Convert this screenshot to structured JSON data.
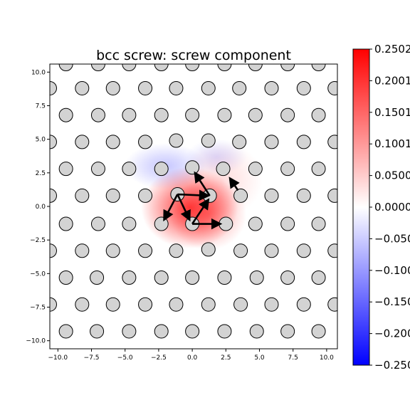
{
  "chart_data": {
    "type": "scatter",
    "title": "bcc screw: screw component",
    "xlabel": "",
    "ylabel": "",
    "xlim": [
      -10.6,
      10.8
    ],
    "ylim": [
      -10.6,
      10.6
    ],
    "x_ticks": [
      -10.0,
      -7.5,
      -5.0,
      -2.5,
      0.0,
      2.5,
      5.0,
      7.5,
      10.0
    ],
    "y_ticks": [
      -10.0,
      -7.5,
      -5.0,
      -2.5,
      0.0,
      2.5,
      5.0,
      7.5,
      10.0
    ],
    "x_tick_labels": [
      "−10.0",
      "−7.5",
      "−5.0",
      "−2.5",
      "0.0",
      "2.5",
      "5.0",
      "7.5",
      "10.0"
    ],
    "y_tick_labels": [
      "−10.0",
      "−7.5",
      "−5.0",
      "−2.5",
      "0.0",
      "2.5",
      "5.0",
      "7.5",
      "10.0"
    ],
    "grid": false,
    "atoms": [
      {
        "x": -9.4,
        "y": 10.6
      },
      {
        "x": -7.0,
        "y": 10.6
      },
      {
        "x": -4.7,
        "y": 10.6
      },
      {
        "x": -2.3,
        "y": 10.6
      },
      {
        "x": 0.0,
        "y": 10.6
      },
      {
        "x": 2.4,
        "y": 10.6
      },
      {
        "x": 4.7,
        "y": 10.6
      },
      {
        "x": 7.1,
        "y": 10.6
      },
      {
        "x": 9.4,
        "y": 10.6
      },
      {
        "x": -10.6,
        "y": 8.8
      },
      {
        "x": -8.2,
        "y": 8.8
      },
      {
        "x": -5.9,
        "y": 8.8
      },
      {
        "x": -3.5,
        "y": 8.8
      },
      {
        "x": -1.2,
        "y": 8.8
      },
      {
        "x": 1.2,
        "y": 8.8
      },
      {
        "x": 3.5,
        "y": 8.8
      },
      {
        "x": 5.9,
        "y": 8.8
      },
      {
        "x": 8.3,
        "y": 8.8
      },
      {
        "x": 10.6,
        "y": 8.8
      },
      {
        "x": -9.4,
        "y": 6.8
      },
      {
        "x": -7.0,
        "y": 6.8
      },
      {
        "x": -4.7,
        "y": 6.8
      },
      {
        "x": -2.3,
        "y": 6.8
      },
      {
        "x": 0.0,
        "y": 6.8
      },
      {
        "x": 2.4,
        "y": 6.8
      },
      {
        "x": 4.7,
        "y": 6.8
      },
      {
        "x": 7.1,
        "y": 6.8
      },
      {
        "x": 9.4,
        "y": 6.8
      },
      {
        "x": -10.6,
        "y": 4.8
      },
      {
        "x": -8.2,
        "y": 4.8
      },
      {
        "x": -5.9,
        "y": 4.8
      },
      {
        "x": -3.5,
        "y": 4.8
      },
      {
        "x": -1.2,
        "y": 4.9
      },
      {
        "x": 1.2,
        "y": 4.9
      },
      {
        "x": 3.5,
        "y": 4.8
      },
      {
        "x": 5.9,
        "y": 4.8
      },
      {
        "x": 8.3,
        "y": 4.8
      },
      {
        "x": 10.6,
        "y": 4.8
      },
      {
        "x": -9.4,
        "y": 2.8
      },
      {
        "x": -7.0,
        "y": 2.8
      },
      {
        "x": -4.7,
        "y": 2.8
      },
      {
        "x": -2.3,
        "y": 2.8
      },
      {
        "x": 0.0,
        "y": 2.9
      },
      {
        "x": 2.3,
        "y": 2.8
      },
      {
        "x": 4.7,
        "y": 2.8
      },
      {
        "x": 7.1,
        "y": 2.8
      },
      {
        "x": 9.4,
        "y": 2.8
      },
      {
        "x": -10.6,
        "y": 0.8
      },
      {
        "x": -8.2,
        "y": 0.8
      },
      {
        "x": -5.9,
        "y": 0.8
      },
      {
        "x": -3.5,
        "y": 0.8
      },
      {
        "x": -1.1,
        "y": 0.9
      },
      {
        "x": 1.3,
        "y": 0.8
      },
      {
        "x": 3.6,
        "y": 0.8
      },
      {
        "x": 5.9,
        "y": 0.8
      },
      {
        "x": 8.3,
        "y": 0.8
      },
      {
        "x": 10.6,
        "y": 0.8
      },
      {
        "x": -9.4,
        "y": -1.3
      },
      {
        "x": -7.0,
        "y": -1.3
      },
      {
        "x": -4.7,
        "y": -1.3
      },
      {
        "x": -2.3,
        "y": -1.3
      },
      {
        "x": 0.0,
        "y": -1.3
      },
      {
        "x": 2.5,
        "y": -1.3
      },
      {
        "x": 4.7,
        "y": -1.3
      },
      {
        "x": 7.1,
        "y": -1.3
      },
      {
        "x": 9.4,
        "y": -1.3
      },
      {
        "x": -10.6,
        "y": -3.3
      },
      {
        "x": -8.2,
        "y": -3.3
      },
      {
        "x": -5.9,
        "y": -3.3
      },
      {
        "x": -3.5,
        "y": -3.3
      },
      {
        "x": -1.2,
        "y": -3.3
      },
      {
        "x": 1.2,
        "y": -3.2
      },
      {
        "x": 3.6,
        "y": -3.3
      },
      {
        "x": 5.9,
        "y": -3.3
      },
      {
        "x": 8.3,
        "y": -3.3
      },
      {
        "x": 10.6,
        "y": -3.3
      },
      {
        "x": -9.4,
        "y": -5.3
      },
      {
        "x": -7.1,
        "y": -5.3
      },
      {
        "x": -4.7,
        "y": -5.3
      },
      {
        "x": -2.3,
        "y": -5.3
      },
      {
        "x": 0.0,
        "y": -5.3
      },
      {
        "x": 2.4,
        "y": -5.3
      },
      {
        "x": 4.8,
        "y": -5.3
      },
      {
        "x": 7.1,
        "y": -5.3
      },
      {
        "x": 9.4,
        "y": -5.3
      },
      {
        "x": -10.6,
        "y": -7.3
      },
      {
        "x": -8.2,
        "y": -7.3
      },
      {
        "x": -5.9,
        "y": -7.3
      },
      {
        "x": -3.5,
        "y": -7.3
      },
      {
        "x": -1.2,
        "y": -7.3
      },
      {
        "x": 1.2,
        "y": -7.3
      },
      {
        "x": 3.6,
        "y": -7.3
      },
      {
        "x": 5.9,
        "y": -7.3
      },
      {
        "x": 8.3,
        "y": -7.3
      },
      {
        "x": 10.6,
        "y": -7.3
      },
      {
        "x": -9.4,
        "y": -9.3
      },
      {
        "x": -7.1,
        "y": -9.3
      },
      {
        "x": -4.7,
        "y": -9.3
      },
      {
        "x": -2.3,
        "y": -9.3
      },
      {
        "x": 0.0,
        "y": -9.3
      },
      {
        "x": 2.4,
        "y": -9.3
      },
      {
        "x": 4.8,
        "y": -9.3
      },
      {
        "x": 7.1,
        "y": -9.3
      },
      {
        "x": 9.4,
        "y": -9.3
      }
    ],
    "arrows": [
      {
        "x1": -1.1,
        "y1": 0.9,
        "x2": 1.2,
        "y2": 0.8
      },
      {
        "x1": 1.3,
        "y1": 0.8,
        "x2": 0.2,
        "y2": 2.5
      },
      {
        "x1": -1.1,
        "y1": 0.9,
        "x2": -2.1,
        "y2": -1.0
      },
      {
        "x1": -1.1,
        "y1": 0.9,
        "x2": -0.2,
        "y2": -1.0
      },
      {
        "x1": 0.0,
        "y1": -1.3,
        "x2": 1.2,
        "y2": 0.5
      },
      {
        "x1": 0.0,
        "y1": -1.3,
        "x2": 2.1,
        "y2": -1.3
      },
      {
        "x1": 3.4,
        "y1": 1.2,
        "x2": 2.8,
        "y2": 2.1
      }
    ],
    "heatmap_blobs": [
      {
        "x": -0.2,
        "y": -0.1,
        "sx": 1.9,
        "sy": 1.6,
        "value": 0.17
      },
      {
        "x": 1.2,
        "y": -0.6,
        "sx": 1.5,
        "sy": 1.4,
        "value": 0.08
      },
      {
        "x": 2.2,
        "y": 2.0,
        "sx": 1.6,
        "sy": 1.5,
        "value": 0.03
      },
      {
        "x": -2.0,
        "y": 3.0,
        "sx": 1.6,
        "sy": 0.9,
        "value": -0.05
      },
      {
        "x": 1.8,
        "y": 3.7,
        "sx": 1.2,
        "sy": 0.7,
        "value": -0.03
      }
    ],
    "colorbar": {
      "colormap": "bwr",
      "range": [
        -0.25,
        0.25
      ],
      "ticks": [
        0.25,
        0.2,
        0.15,
        0.1,
        0.05,
        0.0,
        -0.05,
        -0.1,
        -0.15,
        -0.2,
        -0.25
      ],
      "tick_labels": [
        "0.2502",
        "0.2001",
        "0.1501",
        "0.1001",
        "0.0500",
        "0.0000",
        "−0.050",
        "−0.100",
        "−0.150",
        "−0.200",
        "−0.250"
      ]
    }
  },
  "colors": {
    "atom_fill": "#d3d3d3",
    "atom_stroke": "#000000",
    "arrow": "#000000",
    "positive": "#ff0000",
    "negative": "#0000ff"
  }
}
